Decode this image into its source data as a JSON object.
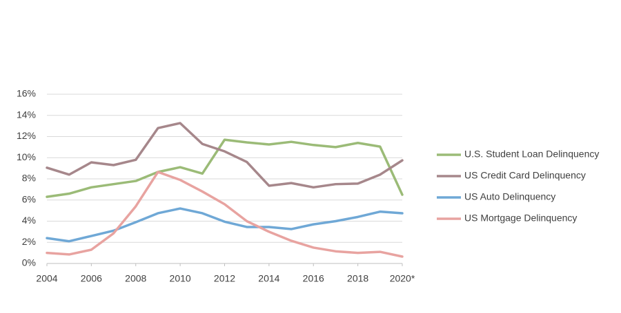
{
  "chart_data": {
    "type": "line",
    "x": [
      2004,
      2005,
      2006,
      2007,
      2008,
      2009,
      2010,
      2011,
      2012,
      2013,
      2014,
      2015,
      2016,
      2017,
      2018,
      2019,
      2020
    ],
    "xlim": [
      2004,
      2020
    ],
    "xticks": [
      2004,
      2006,
      2008,
      2010,
      2012,
      2014,
      2016,
      2018,
      {
        "value": 2020,
        "label": "2020*"
      }
    ],
    "ylim": [
      0,
      16
    ],
    "yticks": [
      {
        "value": 0,
        "label": "0%"
      },
      {
        "value": 2,
        "label": "2%"
      },
      {
        "value": 4,
        "label": "4%"
      },
      {
        "value": 6,
        "label": "6%"
      },
      {
        "value": 8,
        "label": "8%"
      },
      {
        "value": 10,
        "label": "10%"
      },
      {
        "value": 12,
        "label": "12%"
      },
      {
        "value": 14,
        "label": "14%"
      },
      {
        "value": 16,
        "label": "16%"
      }
    ],
    "grid": true,
    "legend": "right",
    "series": [
      {
        "name": "U.S. Student Loan Delinquency",
        "color": "#9bbb77",
        "values": [
          6.3,
          6.6,
          7.2,
          7.5,
          7.8,
          8.65,
          9.1,
          8.5,
          11.7,
          11.45,
          11.25,
          11.5,
          11.2,
          11.0,
          11.4,
          11.05,
          6.5
        ]
      },
      {
        "name": "US Credit Card Delinquency",
        "color": "#a6878b",
        "values": [
          9.05,
          8.4,
          9.56,
          9.3,
          9.8,
          12.8,
          13.27,
          11.3,
          10.6,
          9.6,
          7.35,
          7.6,
          7.2,
          7.5,
          7.55,
          8.4,
          9.75
        ]
      },
      {
        "name": "US Auto Delinquency",
        "color": "#6fa8d6",
        "values": [
          2.4,
          2.1,
          2.6,
          3.1,
          3.9,
          4.75,
          5.2,
          4.75,
          3.95,
          3.45,
          3.45,
          3.25,
          3.7,
          4.0,
          4.4,
          4.9,
          4.75
        ]
      },
      {
        "name": "US Mortgage Delinquency",
        "color": "#e8a3a0",
        "values": [
          1.0,
          0.85,
          1.3,
          2.85,
          5.4,
          8.65,
          7.9,
          6.8,
          5.6,
          4.0,
          3.0,
          2.15,
          1.5,
          1.15,
          1.0,
          1.1,
          0.65
        ]
      }
    ]
  }
}
